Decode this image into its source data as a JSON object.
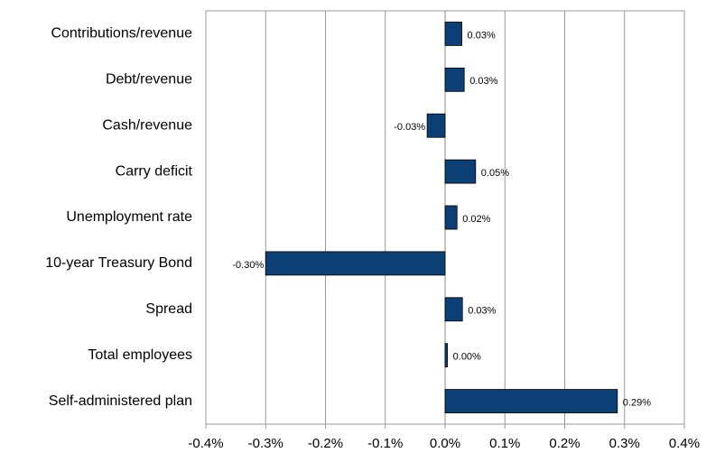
{
  "chart_data": {
    "type": "barh",
    "categories": [
      "Contributions/revenue",
      "Debt/revenue",
      "Cash/revenue",
      "Carry deficit",
      "Unemployment rate",
      "10-year Treasury Bond",
      "Spread",
      "Total employees",
      "Self-administered plan"
    ],
    "values": [
      0.028,
      0.032,
      -0.03,
      0.051,
      0.02,
      -0.3,
      0.029,
      0.004,
      0.288
    ],
    "value_labels": [
      "0.03%",
      "0.03%",
      "-0.03%",
      "0.05%",
      "0.02%",
      "-0.30%",
      "0.03%",
      "0.00%",
      "0.29%"
    ],
    "color": "#0c3f75",
    "xlim": [
      -0.4,
      0.4
    ],
    "xticks": [
      {
        "value": -0.4,
        "label": "-0.4%"
      },
      {
        "value": -0.3,
        "label": "-0.3%"
      },
      {
        "value": -0.2,
        "label": "-0.2%"
      },
      {
        "value": -0.1,
        "label": "-0.1%"
      },
      {
        "value": 0,
        "label": "0.0%"
      },
      {
        "value": 0.1,
        "label": "0.1%"
      },
      {
        "value": 0.2,
        "label": "0.2%"
      },
      {
        "value": 0.3,
        "label": "0.3%"
      },
      {
        "value": 0.4,
        "label": "0.4%"
      }
    ],
    "grid": true
  }
}
